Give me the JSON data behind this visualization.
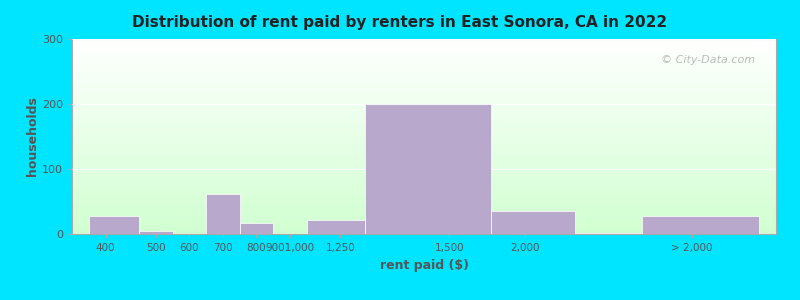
{
  "title": "Distribution of rent paid by renters in East Sonora, CA in 2022",
  "xlabel": "rent paid ($)",
  "ylabel": "households",
  "bar_color": "#b8a8cc",
  "bar_edgecolor": "#ffffff",
  "ylim": [
    0,
    300
  ],
  "yticks": [
    0,
    100,
    200,
    300
  ],
  "background_outer": "#00e5ff",
  "watermark": "© City-Data.com",
  "tick_labels": [
    "400",
    "500",
    "600",
    "700",
    "800",
    "9001,000",
    "1,250",
    "1,500",
    "2,000",
    "> 2,000"
  ],
  "tick_positions": [
    350,
    500,
    600,
    700,
    800,
    900,
    1050,
    1375,
    1600,
    2100
  ],
  "bar_lefts": [
    300,
    450,
    550,
    650,
    750,
    850,
    950,
    1125,
    1500,
    1750,
    1950
  ],
  "bar_rights": [
    450,
    550,
    650,
    750,
    850,
    950,
    1125,
    1500,
    1750,
    1950,
    2300
  ],
  "values": [
    27,
    5,
    0,
    62,
    17,
    0,
    22,
    200,
    35,
    2,
    27
  ],
  "xlim": [
    250,
    2350
  ]
}
